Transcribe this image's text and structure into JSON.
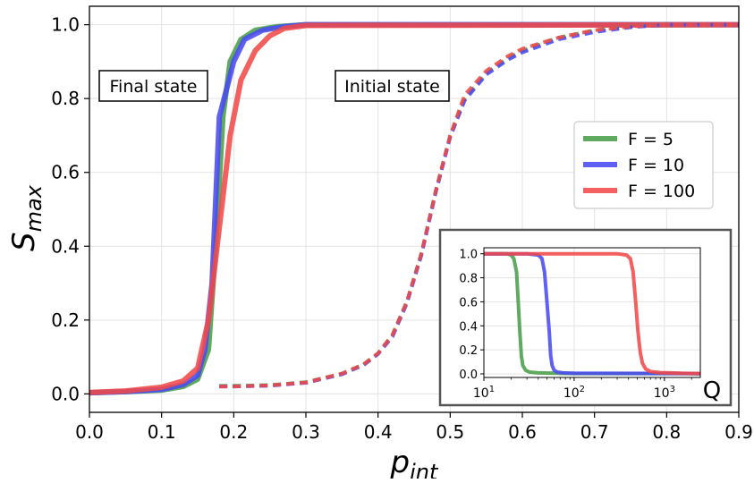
{
  "chart_data": {
    "type": "line",
    "ylabel": "S",
    "ylabel_sub": "max",
    "xlabel": "p",
    "xlabel_sub": "int",
    "xlim": [
      0.0,
      0.9
    ],
    "ylim": [
      -0.05,
      1.05
    ],
    "x_ticks": [
      "0.0",
      "0.1",
      "0.2",
      "0.3",
      "0.4",
      "0.5",
      "0.6",
      "0.7",
      "0.8",
      "0.9"
    ],
    "y_ticks": [
      "0.0",
      "0.2",
      "0.4",
      "0.6",
      "0.8",
      "1.0"
    ],
    "grid": true,
    "legend_position": "right",
    "annotations": [
      "Final state",
      "Initial state"
    ],
    "series": [
      {
        "name": "F = 5",
        "color": "#4a9e4a",
        "style": "solid",
        "group": "final",
        "x": [
          0.0,
          0.05,
          0.1,
          0.13,
          0.15,
          0.165,
          0.175,
          0.185,
          0.195,
          0.21,
          0.23,
          0.26,
          0.3,
          0.9
        ],
        "y": [
          0.003,
          0.006,
          0.01,
          0.02,
          0.04,
          0.12,
          0.4,
          0.75,
          0.9,
          0.96,
          0.985,
          0.995,
          1.0,
          1.0
        ]
      },
      {
        "name": "F = 10",
        "color": "#4a4af0",
        "style": "solid",
        "group": "final",
        "x": [
          0.0,
          0.05,
          0.1,
          0.13,
          0.15,
          0.16,
          0.17,
          0.18,
          0.2,
          0.215,
          0.24,
          0.27,
          0.3,
          0.9
        ],
        "y": [
          0.003,
          0.006,
          0.012,
          0.025,
          0.05,
          0.12,
          0.3,
          0.75,
          0.9,
          0.96,
          0.985,
          0.995,
          1.0,
          1.0
        ]
      },
      {
        "name": "F = 100",
        "color": "#f04a4a",
        "style": "solid",
        "group": "final",
        "x": [
          0.0,
          0.05,
          0.1,
          0.13,
          0.15,
          0.165,
          0.18,
          0.195,
          0.21,
          0.23,
          0.25,
          0.27,
          0.3,
          0.9
        ],
        "y": [
          0.004,
          0.008,
          0.018,
          0.035,
          0.07,
          0.2,
          0.45,
          0.7,
          0.85,
          0.93,
          0.97,
          0.99,
          0.998,
          1.0
        ]
      },
      {
        "name": "F = 5",
        "color": "#4a9e4a",
        "style": "dashed",
        "group": "initial",
        "x": [
          0.18,
          0.2,
          0.25,
          0.3,
          0.35,
          0.38,
          0.4,
          0.42,
          0.44,
          0.46,
          0.48,
          0.5,
          0.52,
          0.55,
          0.58,
          0.6,
          0.65,
          0.7,
          0.75,
          0.8,
          0.9
        ],
        "y": [
          0.022,
          0.022,
          0.024,
          0.032,
          0.055,
          0.08,
          0.11,
          0.16,
          0.25,
          0.38,
          0.55,
          0.7,
          0.8,
          0.87,
          0.91,
          0.93,
          0.965,
          0.985,
          0.995,
          1.0,
          1.0
        ]
      },
      {
        "name": "F = 10",
        "color": "#4a4af0",
        "style": "dashed",
        "group": "initial",
        "x": [
          0.18,
          0.2,
          0.25,
          0.3,
          0.35,
          0.38,
          0.4,
          0.42,
          0.44,
          0.46,
          0.48,
          0.5,
          0.52,
          0.55,
          0.58,
          0.6,
          0.65,
          0.7,
          0.75,
          0.8,
          0.9
        ],
        "y": [
          0.02,
          0.02,
          0.022,
          0.03,
          0.053,
          0.078,
          0.108,
          0.155,
          0.245,
          0.375,
          0.545,
          0.695,
          0.795,
          0.865,
          0.905,
          0.925,
          0.96,
          0.98,
          0.993,
          1.0,
          1.0
        ]
      },
      {
        "name": "F = 100",
        "color": "#f04a4a",
        "style": "dashed",
        "group": "initial",
        "x": [
          0.18,
          0.2,
          0.25,
          0.3,
          0.35,
          0.38,
          0.4,
          0.42,
          0.44,
          0.46,
          0.48,
          0.5,
          0.52,
          0.55,
          0.58,
          0.6,
          0.65,
          0.7,
          0.75,
          0.8,
          0.9
        ],
        "y": [
          0.02,
          0.02,
          0.023,
          0.031,
          0.055,
          0.08,
          0.11,
          0.16,
          0.25,
          0.38,
          0.55,
          0.7,
          0.81,
          0.875,
          0.915,
          0.935,
          0.965,
          0.985,
          0.995,
          1.0,
          1.0
        ]
      }
    ],
    "legend": [
      {
        "label": "F = 5",
        "color": "#4a9e4a"
      },
      {
        "label": "F = 10",
        "color": "#4a4af0"
      },
      {
        "label": "F = 100",
        "color": "#f04a4a"
      }
    ],
    "inset": {
      "type": "line",
      "xlabel": "Q",
      "xscale": "log",
      "xlim": [
        10,
        2500
      ],
      "ylim": [
        -0.03,
        1.05
      ],
      "x_ticks": [
        10,
        100,
        1000
      ],
      "x_tick_labels": [
        {
          "base": "10",
          "exp": "1"
        },
        {
          "base": "10",
          "exp": "2"
        },
        {
          "base": "10",
          "exp": "3"
        }
      ],
      "y_ticks": [
        "0.0",
        "0.2",
        "0.4",
        "0.6",
        "0.8",
        "1.0"
      ],
      "grid": true,
      "series": [
        {
          "name": "F = 5",
          "color": "#4a9e4a",
          "x": [
            10,
            18,
            20,
            21.5,
            23,
            24,
            25,
            26,
            27,
            29,
            32,
            40,
            60,
            100,
            2500
          ],
          "y": [
            1.0,
            1.0,
            0.99,
            0.96,
            0.85,
            0.6,
            0.35,
            0.15,
            0.07,
            0.03,
            0.015,
            0.008,
            0.005,
            0.003,
            0.002
          ]
        },
        {
          "name": "F = 10",
          "color": "#4a4af0",
          "x": [
            10,
            30,
            40,
            44,
            47,
            50,
            53,
            55,
            57,
            60,
            65,
            75,
            100,
            2500
          ],
          "y": [
            1.0,
            1.0,
            0.99,
            0.96,
            0.85,
            0.6,
            0.35,
            0.15,
            0.07,
            0.03,
            0.015,
            0.008,
            0.005,
            0.002
          ]
        },
        {
          "name": "F = 100",
          "color": "#f04a4a",
          "x": [
            10,
            100,
            300,
            380,
            420,
            450,
            480,
            510,
            540,
            570,
            620,
            700,
            900,
            1500,
            2500
          ],
          "y": [
            1.0,
            1.0,
            1.0,
            0.99,
            0.96,
            0.85,
            0.6,
            0.35,
            0.18,
            0.09,
            0.04,
            0.02,
            0.01,
            0.005,
            0.003
          ]
        }
      ]
    }
  }
}
